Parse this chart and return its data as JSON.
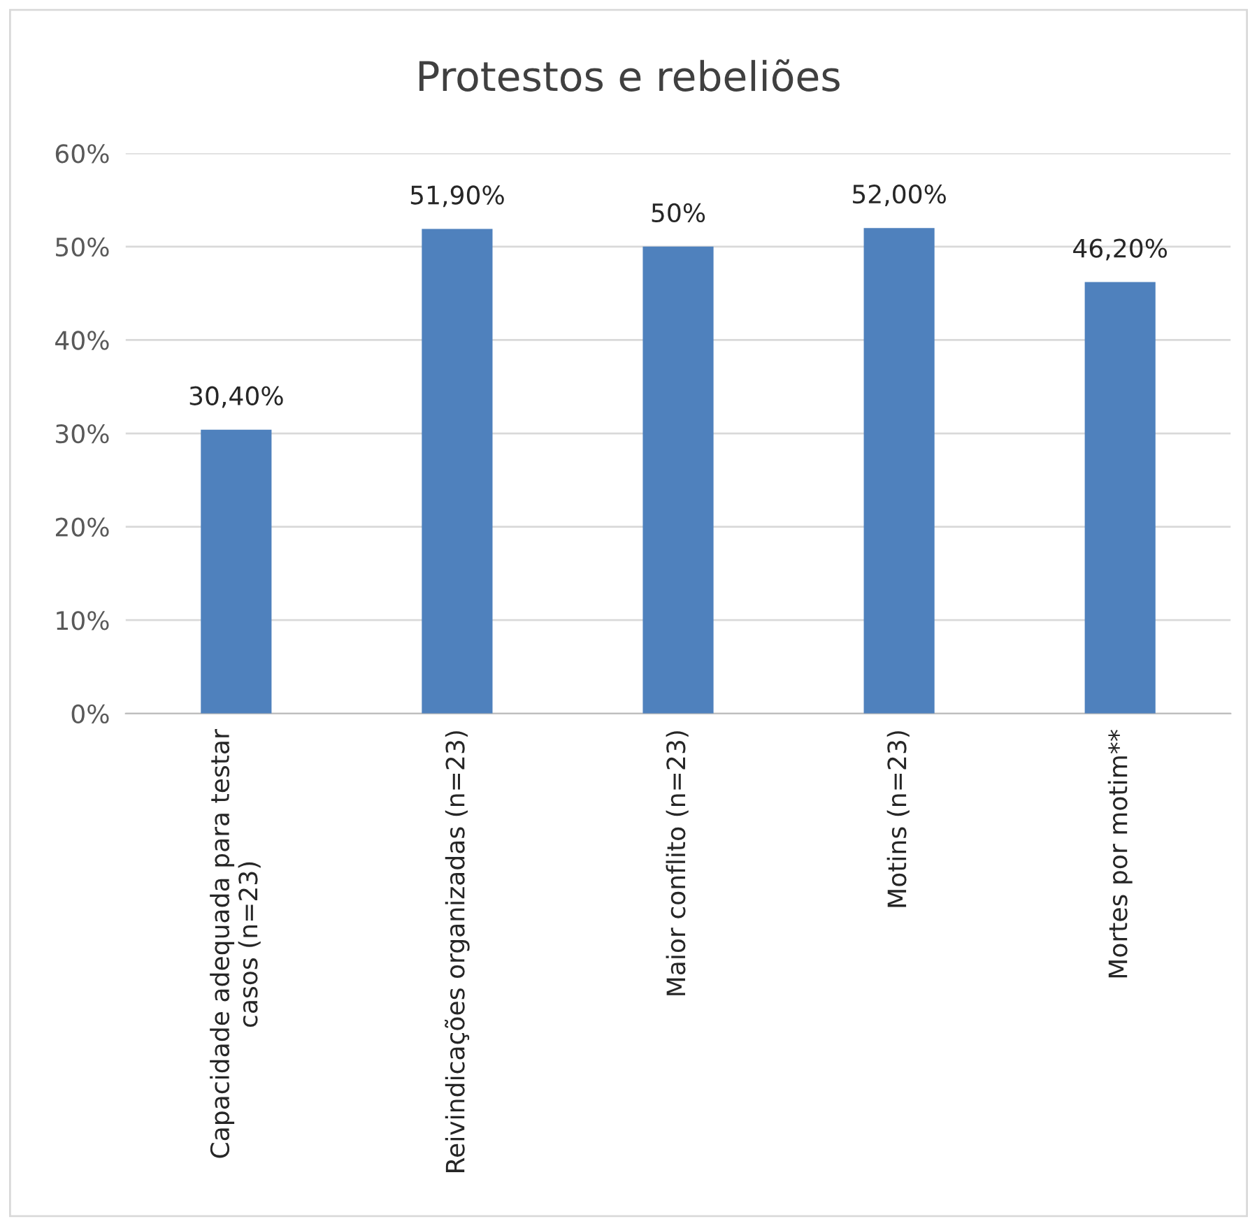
{
  "chart_data": {
    "type": "bar",
    "title": "Protestos e rebeliões",
    "categories": [
      "Capacidade adequada para testar\ncasos (n=23)",
      "Reivindicações organizadas (n=23)",
      "Maior conflito (n=23)",
      "Motins (n=23)",
      "Mortes por motim**"
    ],
    "values": [
      30.4,
      51.9,
      50,
      52,
      46.2
    ],
    "value_labels": [
      "30,40%",
      "51,90%",
      "50%",
      "52,00%",
      "46,20%"
    ],
    "color": "#4f81bd",
    "ylim": [
      0,
      60
    ],
    "yticks": [
      {
        "value": 0,
        "label": "0%"
      },
      {
        "value": 10,
        "label": "10%"
      },
      {
        "value": 20,
        "label": "20%"
      },
      {
        "value": 30,
        "label": "30%"
      },
      {
        "value": 40,
        "label": "40%"
      },
      {
        "value": 50,
        "label": "50%"
      },
      {
        "value": 60,
        "label": "60%"
      }
    ],
    "grid": "y",
    "legend": false
  }
}
